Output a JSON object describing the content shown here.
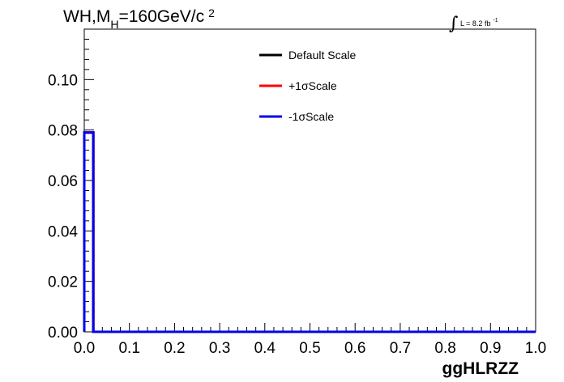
{
  "chart_data": {
    "type": "line",
    "title_parts": {
      "main": "WH,M",
      "sub": "H",
      "rest": "=160GeV/c",
      "sup": "2"
    },
    "lumi": {
      "symbol": "∫",
      "label": "L = 8.2 fb",
      "sup": "-1"
    },
    "xlabel": "ggHLRZZ",
    "ylabel": "",
    "xlim": [
      0.0,
      1.0
    ],
    "ylim": [
      0.0,
      0.12
    ],
    "x_ticks": [
      "0.0",
      "0.1",
      "0.2",
      "0.3",
      "0.4",
      "0.5",
      "0.6",
      "0.7",
      "0.8",
      "0.9",
      "1.0"
    ],
    "y_ticks": [
      "0.00",
      "0.02",
      "0.04",
      "0.06",
      "0.08",
      "0.10"
    ],
    "bin_edges": [
      0.0,
      0.02,
      1.0
    ],
    "series": [
      {
        "name": "Default Scale",
        "color": "#000000",
        "values": [
          0.079,
          0.0
        ]
      },
      {
        "name": "+1σScale",
        "color": "#ff0000",
        "values": [
          0.079,
          0.0
        ]
      },
      {
        "name": "-1σScale",
        "color": "#0000ee",
        "values": [
          0.079,
          0.0
        ]
      }
    ],
    "legend_position": "top-center",
    "grid": false
  }
}
